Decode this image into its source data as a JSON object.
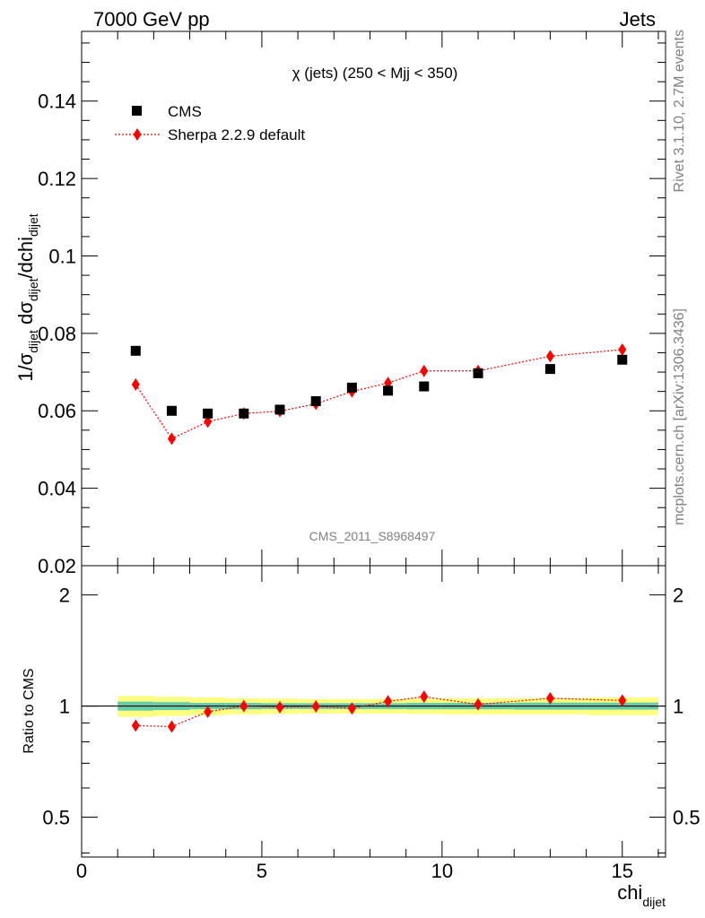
{
  "header": {
    "left": "7000 GeV pp",
    "right": "Jets"
  },
  "side_labels": {
    "rivet": "Rivet 3.1.10,  2.7M events",
    "mcplots": "mcplots.cern.ch [arXiv:1306.3436]"
  },
  "chart_data": [
    {
      "type": "scatter",
      "title": "χ (jets) (250 < Mjj <  350)",
      "analysis_id": "CMS_2011_S8968497",
      "ylabel": "1/σdijet dσdijet/dchidijet",
      "xlim": [
        0,
        16.2
      ],
      "ylim": [
        0.02,
        0.158
      ],
      "ytick_labels": [
        "0.02",
        "0.04",
        "0.06",
        "0.08",
        "0.1",
        "0.12",
        "0.14"
      ],
      "legend_position": "top-left",
      "series": [
        {
          "name": "CMS",
          "marker": "square",
          "color": "#000000",
          "x": [
            1.5,
            2.5,
            3.5,
            4.5,
            5.5,
            6.5,
            7.5,
            8.5,
            9.5,
            11,
            13,
            15
          ],
          "y": [
            0.0755,
            0.06,
            0.0593,
            0.0593,
            0.0603,
            0.0625,
            0.066,
            0.0652,
            0.0663,
            0.0697,
            0.0708,
            0.0732
          ]
        },
        {
          "name": "Sherpa 2.2.9 default",
          "marker": "diamond",
          "color": "#ff0000",
          "line": "dotted",
          "x": [
            1.5,
            2.5,
            3.5,
            4.5,
            5.5,
            6.5,
            7.5,
            8.5,
            9.5,
            11,
            13,
            15
          ],
          "y": [
            0.0668,
            0.0528,
            0.0572,
            0.0593,
            0.0599,
            0.0618,
            0.065,
            0.0672,
            0.0703,
            0.0703,
            0.0741,
            0.0758
          ],
          "yerr": [
            0.0015,
            0.0013,
            0.0013,
            0.0013,
            0.0013,
            0.0013,
            0.0013,
            0.0013,
            0.0013,
            0.0013,
            0.0013,
            0.0013
          ]
        }
      ]
    },
    {
      "type": "scatter",
      "ylabel": "Ratio to CMS",
      "xlabel": "chidijet",
      "xlim": [
        0,
        16.2
      ],
      "ylim": [
        0.39,
        2.4
      ],
      "log_y": true,
      "xtick_labels": [
        "0",
        "5",
        "10",
        "15"
      ],
      "ytick_labels": [
        "0.5",
        "1",
        "2"
      ],
      "band": {
        "x_edges": [
          1,
          2,
          3,
          4,
          5,
          6,
          7,
          8,
          9,
          10,
          12,
          14,
          16
        ],
        "stat": [
          0.028,
          0.025,
          0.02,
          0.02,
          0.018,
          0.018,
          0.018,
          0.018,
          0.02,
          0.02,
          0.022,
          0.022
        ],
        "total": [
          0.065,
          0.06,
          0.055,
          0.05,
          0.048,
          0.045,
          0.045,
          0.045,
          0.048,
          0.05,
          0.05,
          0.055
        ],
        "stat_color": "#66ccaa",
        "total_color": "#ffff80"
      },
      "series": [
        {
          "name": "Sherpa 2.2.9 default",
          "marker": "diamond",
          "color": "#ff0000",
          "line": "dotted",
          "x": [
            1.5,
            2.5,
            3.5,
            4.5,
            5.5,
            6.5,
            7.5,
            8.5,
            9.5,
            11,
            13,
            15
          ],
          "y": [
            0.885,
            0.88,
            0.965,
            1.0,
            0.993,
            0.998,
            0.985,
            1.03,
            1.06,
            1.01,
            1.05,
            1.035
          ],
          "yerr": [
            0.02,
            0.022,
            0.022,
            0.022,
            0.022,
            0.021,
            0.02,
            0.02,
            0.02,
            0.019,
            0.018,
            0.018
          ]
        }
      ]
    }
  ]
}
